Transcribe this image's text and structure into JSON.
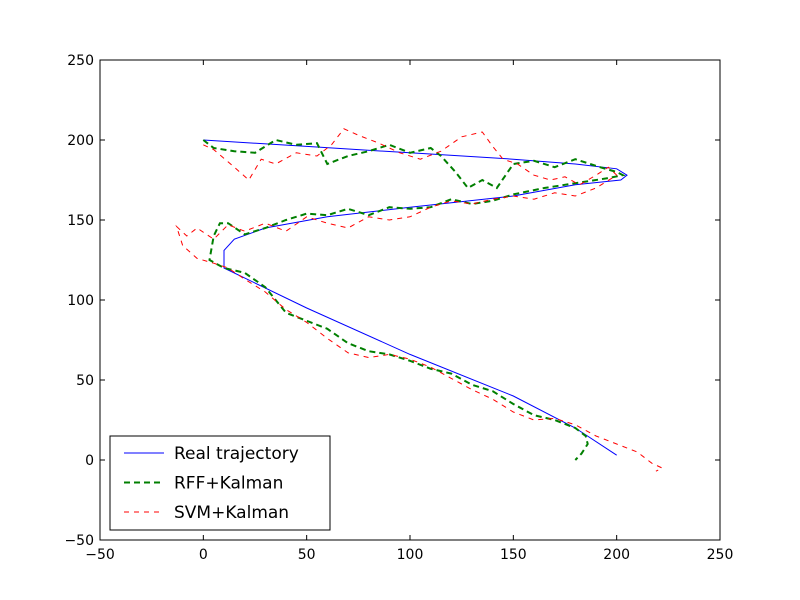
{
  "chart_data": {
    "type": "line",
    "title": "",
    "xlabel": "",
    "ylabel": "",
    "xlim": [
      -50,
      250
    ],
    "ylim": [
      -50,
      250
    ],
    "xticks": [
      -50,
      0,
      50,
      100,
      150,
      200,
      250
    ],
    "yticks": [
      -50,
      0,
      50,
      100,
      150,
      200,
      250
    ],
    "x_tick_labels": [
      "−50",
      "0",
      "50",
      "100",
      "150",
      "200",
      "250"
    ],
    "y_tick_labels": [
      "−50",
      "0",
      "50",
      "100",
      "150",
      "200",
      "250"
    ],
    "grid": false,
    "legend_position": "lower-left",
    "series": [
      {
        "name": "Real trajectory",
        "color": "#0000ff",
        "style": "solid",
        "x": [
          0,
          50,
          100,
          150,
          180,
          200,
          205,
          202,
          180,
          150,
          100,
          60,
          30,
          15,
          10,
          10,
          50,
          100,
          150,
          180,
          200
        ],
        "y": [
          200,
          196,
          192,
          188,
          185,
          182,
          178,
          175,
          172,
          165,
          158,
          152,
          145,
          138,
          131,
          120,
          95,
          66,
          40,
          20,
          3
        ]
      },
      {
        "name": "RFF+Kalman",
        "color": "#007f00",
        "style": "dashed",
        "x": [
          0,
          5,
          15,
          25,
          35,
          45,
          55,
          60,
          70,
          80,
          90,
          100,
          110,
          115,
          122,
          128,
          135,
          142,
          150,
          160,
          170,
          180,
          192,
          200,
          203,
          195,
          180,
          165,
          150,
          140,
          130,
          120,
          110,
          100,
          90,
          80,
          70,
          60,
          50,
          40,
          30,
          20,
          12,
          8,
          5,
          3,
          10,
          20,
          30,
          40,
          50,
          60,
          70,
          80,
          90,
          100,
          110,
          120,
          130,
          140,
          150,
          160,
          170,
          180,
          185,
          186,
          183,
          180
        ],
        "y": [
          200,
          195,
          193,
          192,
          200,
          197,
          198,
          185,
          190,
          193,
          197,
          192,
          195,
          190,
          180,
          170,
          175,
          170,
          185,
          187,
          183,
          188,
          183,
          180,
          178,
          176,
          173,
          170,
          166,
          162,
          160,
          163,
          158,
          157,
          158,
          153,
          157,
          153,
          154,
          150,
          145,
          141,
          148,
          148,
          140,
          125,
          120,
          117,
          108,
          92,
          87,
          82,
          73,
          68,
          66,
          62,
          57,
          54,
          47,
          43,
          35,
          28,
          25,
          20,
          15,
          10,
          4,
          0
        ]
      },
      {
        "name": "SVM+Kalman",
        "color": "#ff0000",
        "style": "dashed",
        "x": [
          0,
          5,
          15,
          22,
          28,
          35,
          45,
          55,
          62,
          68,
          75,
          85,
          95,
          105,
          115,
          125,
          135,
          140,
          145,
          152,
          160,
          168,
          175,
          182,
          190,
          196,
          200,
          190,
          180,
          170,
          160,
          150,
          140,
          130,
          120,
          110,
          100,
          90,
          80,
          70,
          60,
          50,
          40,
          30,
          20,
          12,
          5,
          -3,
          -8,
          -13,
          -10,
          -3,
          5,
          12,
          20,
          30,
          40,
          50,
          60,
          70,
          80,
          90,
          100,
          110,
          120,
          130,
          140,
          150,
          160,
          170,
          180,
          190,
          200,
          210,
          217,
          222,
          219
        ],
        "y": [
          197,
          194,
          183,
          175,
          188,
          185,
          192,
          190,
          197,
          207,
          203,
          198,
          192,
          188,
          193,
          202,
          205,
          196,
          188,
          185,
          178,
          175,
          177,
          172,
          178,
          183,
          178,
          170,
          165,
          167,
          163,
          165,
          163,
          160,
          162,
          158,
          152,
          150,
          152,
          145,
          148,
          152,
          143,
          148,
          143,
          147,
          138,
          145,
          140,
          146,
          134,
          126,
          123,
          120,
          113,
          105,
          94,
          86,
          76,
          67,
          64,
          66,
          63,
          58,
          51,
          44,
          38,
          30,
          25,
          26,
          22,
          15,
          10,
          5,
          -2,
          -5,
          -7
        ]
      }
    ]
  }
}
